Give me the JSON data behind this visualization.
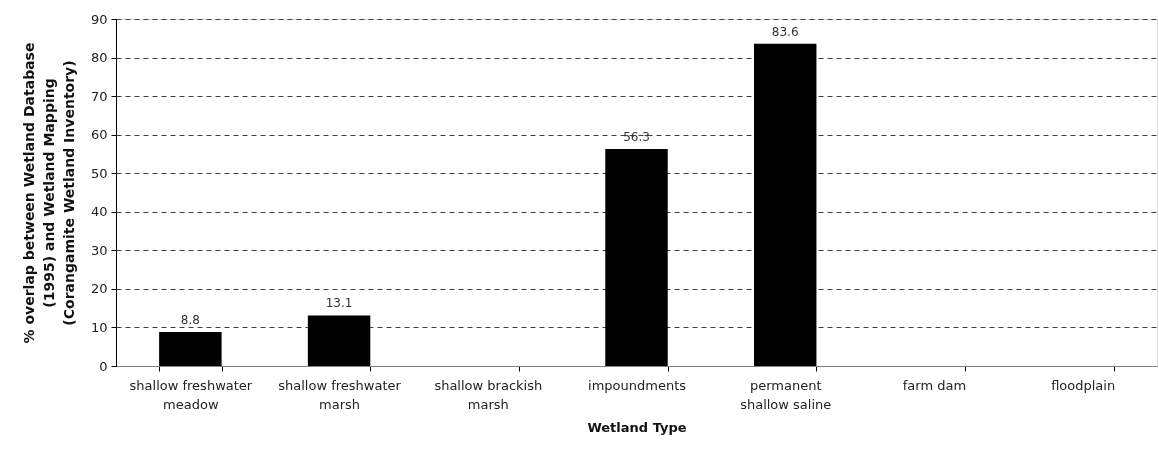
{
  "chart_data": {
    "type": "bar",
    "xlabel": "Wetland Type",
    "ylabel": "% overlap between Wetland Database\n(1995) and Wetland Mapping\n(Corangamite Wetland Inventory)",
    "categories": [
      "shallow freshwater\nmeadow",
      "shallow freshwater\nmarsh",
      "shallow brackish\nmarsh",
      "impoundments",
      "permanent\nshallow saline",
      "farm dam",
      "floodplain"
    ],
    "series": [
      {
        "color": "#000000",
        "values": [
          8.8,
          13.1,
          null,
          56.3,
          83.6,
          null,
          null
        ]
      }
    ],
    "ylim": [
      0,
      90
    ],
    "yticks": [
      0,
      10,
      20,
      30,
      40,
      50,
      60,
      70,
      80,
      90
    ],
    "grid": "y",
    "data_labels": true
  }
}
